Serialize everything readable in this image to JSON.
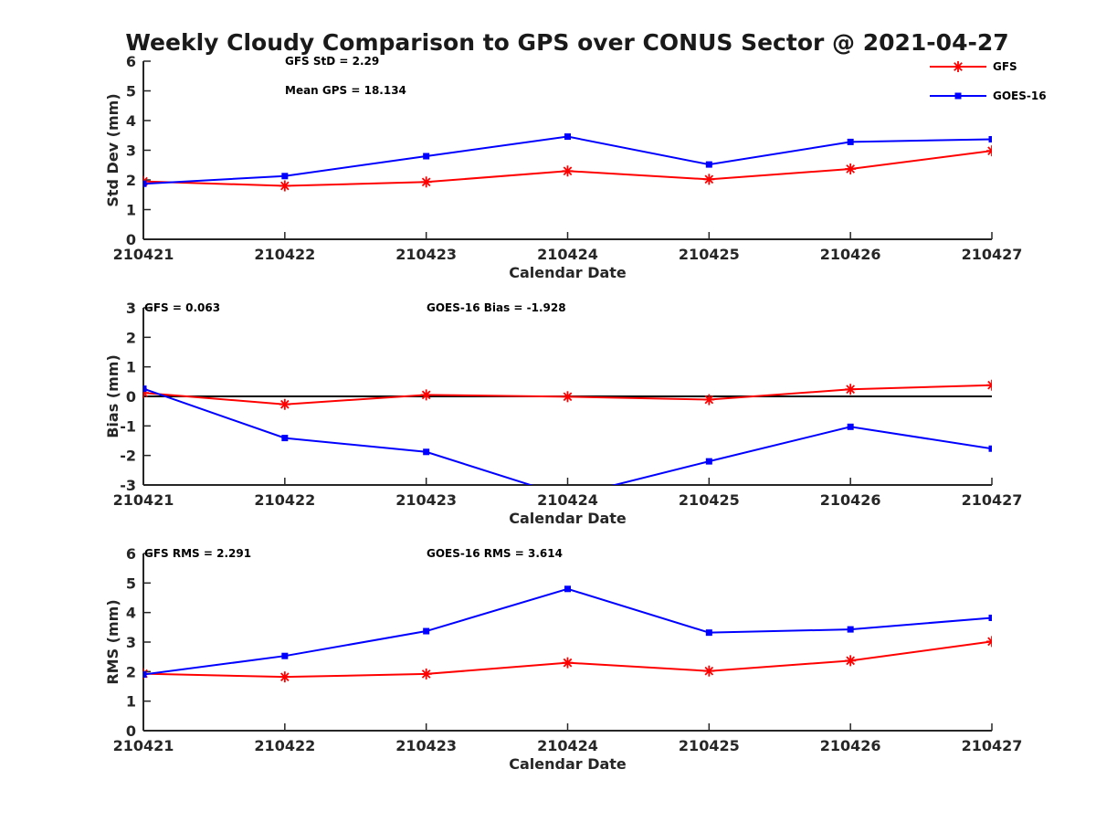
{
  "title": "Weekly Cloudy Comparison to GPS over CONUS Sector @ 2021-04-27",
  "legend": [
    {
      "name": "GFS",
      "color": "#ff0000",
      "marker": "asterisk"
    },
    {
      "name": "GOES-16",
      "color": "#0000ff",
      "marker": "square"
    }
  ],
  "chart_data": [
    {
      "type": "line",
      "x": [
        "210421",
        "210422",
        "210423",
        "210424",
        "210425",
        "210426",
        "210427"
      ],
      "xlabel": "Calendar Date",
      "ylabel": "Std Dev (mm)",
      "ylim": [
        0,
        6
      ],
      "yticks": [
        0,
        1,
        2,
        3,
        4,
        5,
        6
      ],
      "annotations": [
        "GFS StD = 2.29",
        "Mean GPS = 18.134"
      ],
      "series": [
        {
          "name": "GFS",
          "color": "#ff0000",
          "values": [
            1.95,
            1.8,
            1.93,
            2.3,
            2.02,
            2.37,
            2.98
          ]
        },
        {
          "name": "GOES-16",
          "color": "#0000ff",
          "values": [
            1.87,
            2.13,
            2.8,
            3.46,
            2.52,
            3.28,
            3.37
          ]
        }
      ]
    },
    {
      "type": "line",
      "x": [
        "210421",
        "210422",
        "210423",
        "210424",
        "210425",
        "210426",
        "210427"
      ],
      "xlabel": "Calendar Date",
      "ylabel": "Bias (mm)",
      "ylim": [
        -3,
        3
      ],
      "yticks": [
        -3,
        -2,
        -1,
        0,
        1,
        2,
        3
      ],
      "zero_line": true,
      "annotations": [
        "GFS = 0.063",
        "GOES-16 Bias  = -1.928"
      ],
      "series": [
        {
          "name": "GFS",
          "color": "#ff0000",
          "values": [
            0.12,
            -0.27,
            0.05,
            -0.01,
            -0.11,
            0.24,
            0.38
          ]
        },
        {
          "name": "GOES-16",
          "color": "#0000ff",
          "values": [
            0.26,
            -1.41,
            -1.88,
            -3.4,
            -2.2,
            -1.03,
            -1.77
          ]
        }
      ]
    },
    {
      "type": "line",
      "x": [
        "210421",
        "210422",
        "210423",
        "210424",
        "210425",
        "210426",
        "210427"
      ],
      "xlabel": "Calendar Date",
      "ylabel": "RMS (mm)",
      "ylim": [
        0,
        6
      ],
      "yticks": [
        0,
        1,
        2,
        3,
        4,
        5,
        6
      ],
      "annotations": [
        "GFS RMS = 2.291",
        "GOES-16 RMS = 3.614"
      ],
      "series": [
        {
          "name": "GFS",
          "color": "#ff0000",
          "values": [
            1.93,
            1.82,
            1.92,
            2.3,
            2.02,
            2.37,
            3.02
          ]
        },
        {
          "name": "GOES-16",
          "color": "#0000ff",
          "values": [
            1.9,
            2.53,
            3.37,
            4.8,
            3.32,
            3.43,
            3.82
          ]
        }
      ]
    }
  ]
}
